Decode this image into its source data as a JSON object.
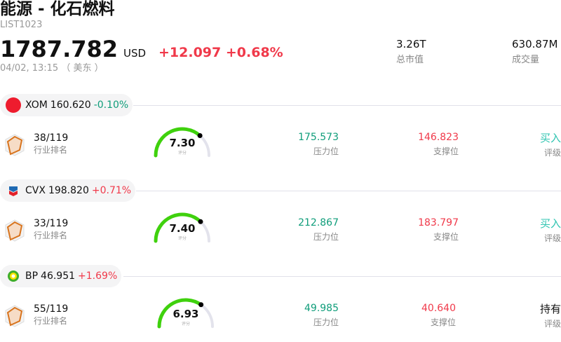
{
  "header": {
    "title": "能源 - 化石燃料",
    "code": "LIST1023",
    "price": "1787.782",
    "currency": "USD",
    "change": "+12.097",
    "change_pct": "+0.68%",
    "time": "04/02, 13:15 （ 美东 ）",
    "market_cap": {
      "value": "3.26T",
      "label": "总市值"
    },
    "volume": {
      "value": "630.87M",
      "label": "成交量"
    }
  },
  "colors": {
    "up": "#f0394a",
    "down": "#0f9d7a",
    "gauge": "#3fd10d"
  },
  "labels": {
    "rank": "行业排名",
    "score": "评分",
    "resistance": "压力位",
    "support": "支撑位",
    "rating": "评级"
  },
  "stocks": [
    {
      "ticker": "XOM",
      "price": "160.620",
      "change": "-0.10%",
      "dir": "down",
      "logo_text": "Exxon Mobil",
      "rank": "38/119",
      "score": "7.30",
      "score_value": 7.3,
      "resistance": "175.573",
      "support": "146.823",
      "rating": "买入"
    },
    {
      "ticker": "CVX",
      "price": "198.820",
      "change": "+0.71%",
      "dir": "up",
      "logo_text": "",
      "rank": "33/119",
      "score": "7.40",
      "score_value": 7.4,
      "resistance": "212.867",
      "support": "183.797",
      "rating": "买入"
    },
    {
      "ticker": "BP",
      "price": "46.951",
      "change": "+1.69%",
      "dir": "up",
      "logo_text": "",
      "rank": "55/119",
      "score": "6.93",
      "score_value": 6.93,
      "resistance": "49.985",
      "support": "40.640",
      "rating": "持有"
    }
  ]
}
